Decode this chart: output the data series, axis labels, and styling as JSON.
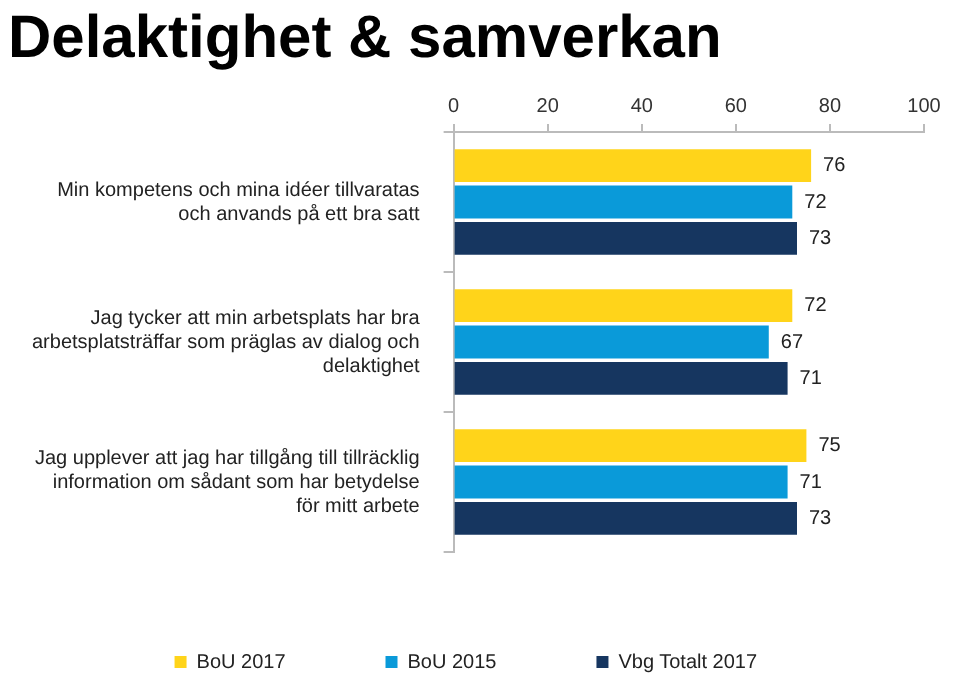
{
  "chart_data": {
    "type": "bar",
    "orientation": "horizontal",
    "title": "Delaktighet & samverkan",
    "categories": [
      "Min kompetens och mina idéer tillvaratas och anvands på ett bra satt",
      "Jag tycker att min arbetsplats har bra arbetsplatsträffar som präglas av dialog och delaktighet",
      "Jag upplever att jag har tillgång till tillräcklig information om sådant som har betydelse för mitt arbete"
    ],
    "series": [
      {
        "name": "BoU 2017",
        "color": "#ffd41a",
        "values": [
          76,
          72,
          75
        ]
      },
      {
        "name": "BoU 2015",
        "color": "#0a9ad9",
        "values": [
          72,
          67,
          71
        ]
      },
      {
        "name": "Vbg Totalt 2017",
        "color": "#163660",
        "values": [
          73,
          71,
          73
        ]
      }
    ],
    "xlim": [
      0,
      100
    ],
    "xticks": [
      0,
      20,
      40,
      60,
      80,
      100
    ],
    "data_labels": true,
    "legend": "bottom",
    "grid": false
  }
}
